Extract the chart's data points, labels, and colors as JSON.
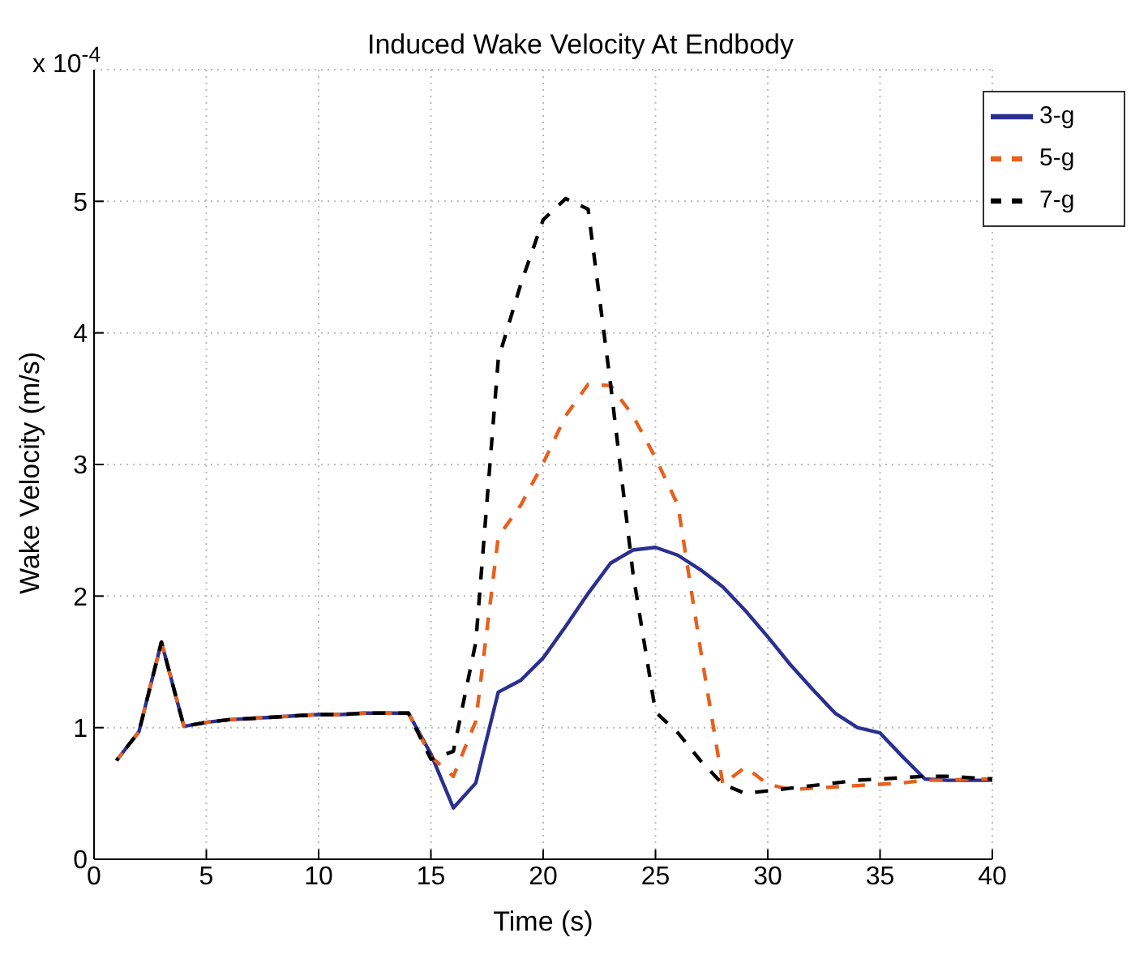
{
  "chart_data": {
    "type": "line",
    "title": "Induced Wake Velocity At Endbody",
    "xlabel": "Time (s)",
    "ylabel": "Wake Velocity (m/s)",
    "annotations": [
      "x 10$^{-4}$"
    ],
    "x": [
      1,
      2,
      3,
      4,
      5,
      6,
      7,
      8,
      9,
      10,
      11,
      12,
      13,
      14,
      15,
      16,
      17,
      18,
      19,
      20,
      21,
      22,
      23,
      24,
      25,
      26,
      27,
      28,
      29,
      30,
      31,
      32,
      33,
      34,
      35,
      36,
      37,
      38,
      39,
      40
    ],
    "series": [
      {
        "name": "3-g",
        "color": "#2b2f8f",
        "line_style": "solid",
        "values": [
          0.75,
          0.97,
          1.65,
          1.01,
          1.04,
          1.06,
          1.07,
          1.08,
          1.09,
          1.1,
          1.1,
          1.11,
          1.11,
          1.11,
          0.8,
          0.39,
          0.58,
          1.27,
          1.36,
          1.53,
          1.77,
          2.02,
          2.25,
          2.35,
          2.37,
          2.31,
          2.2,
          2.07,
          1.89,
          1.69,
          1.48,
          1.29,
          1.11,
          1.0,
          0.96,
          0.78,
          0.61,
          0.6,
          0.6,
          0.6
        ]
      },
      {
        "name": "5-g",
        "color": "#e8601c",
        "line_style": "dashed",
        "values": [
          0.75,
          0.97,
          1.65,
          1.01,
          1.04,
          1.06,
          1.07,
          1.08,
          1.09,
          1.1,
          1.1,
          1.11,
          1.11,
          1.11,
          0.78,
          0.63,
          1.05,
          2.45,
          2.69,
          3.01,
          3.37,
          3.61,
          3.6,
          3.37,
          3.05,
          2.69,
          1.6,
          0.57,
          0.7,
          0.57,
          0.53,
          0.54,
          0.55,
          0.56,
          0.57,
          0.58,
          0.6,
          0.6,
          0.61,
          0.61
        ]
      },
      {
        "name": "7-g",
        "color": "#000000",
        "line_style": "dashed",
        "values": [
          0.75,
          0.97,
          1.65,
          1.01,
          1.04,
          1.06,
          1.07,
          1.08,
          1.09,
          1.1,
          1.1,
          1.11,
          1.11,
          1.11,
          0.76,
          0.82,
          1.65,
          3.8,
          4.37,
          4.86,
          5.02,
          4.94,
          3.61,
          2.17,
          1.12,
          0.96,
          0.75,
          0.57,
          0.5,
          0.52,
          0.54,
          0.56,
          0.58,
          0.6,
          0.61,
          0.62,
          0.63,
          0.63,
          0.62,
          0.61
        ]
      }
    ],
    "xlim": [
      0,
      40
    ],
    "xticks": [
      0,
      5,
      10,
      15,
      20,
      25,
      30,
      35,
      40
    ],
    "ylim": [
      0,
      6
    ],
    "yticks": [
      0,
      1,
      2,
      3,
      4,
      5
    ],
    "grid": true,
    "legend": "top right",
    "marker": "none"
  }
}
